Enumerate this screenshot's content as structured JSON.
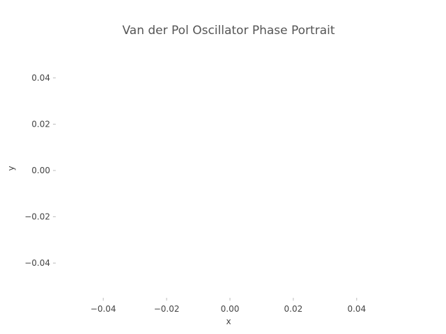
{
  "chart_data": {
    "type": "line",
    "title": "Van der Pol Oscillator Phase Portrait",
    "xlabel": "x",
    "ylabel": "y",
    "xlim": [
      -0.055,
      0.055
    ],
    "ylim": [
      -0.055,
      0.055
    ],
    "xticks": [
      "−0.04",
      "−0.02",
      "0.00",
      "0.02",
      "0.04"
    ],
    "xtick_values": [
      -0.04,
      -0.02,
      0.0,
      0.02,
      0.04
    ],
    "yticks": [
      "0.04",
      "0.02",
      "0.00",
      "−0.02",
      "−0.04"
    ],
    "ytick_values": [
      0.04,
      0.02,
      0.0,
      -0.02,
      -0.04
    ],
    "grid": false,
    "series": []
  }
}
